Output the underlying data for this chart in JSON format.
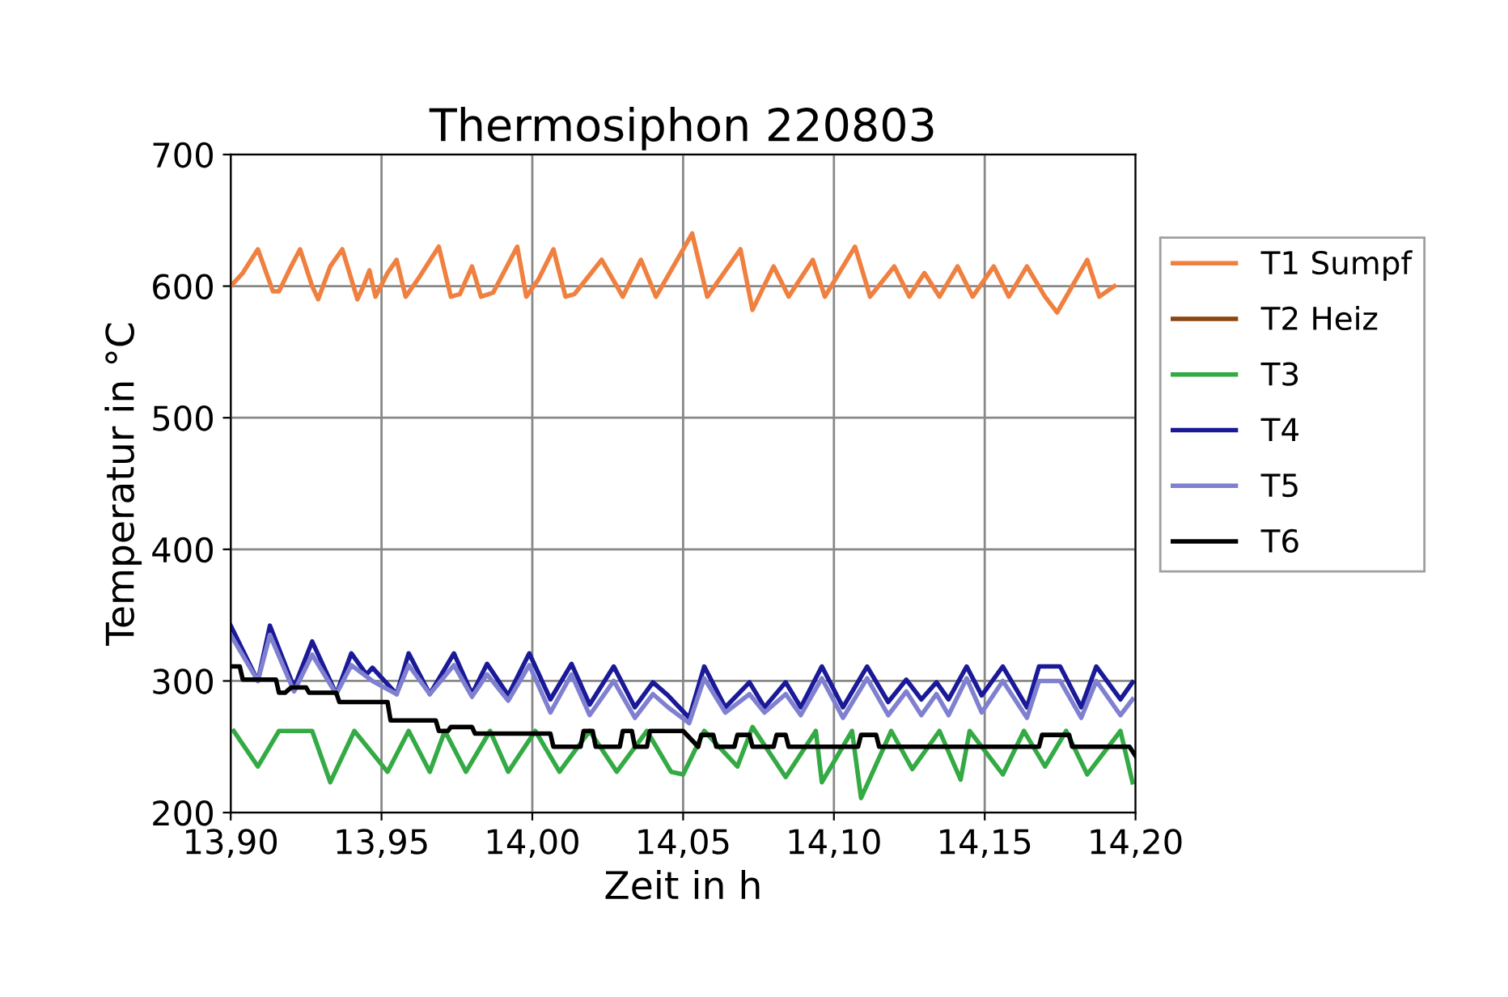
{
  "chart_data": {
    "type": "line",
    "title": "Thermosiphon 220803",
    "xlabel": "Zeit in h",
    "ylabel": "Temperatur in °C",
    "xlim": [
      13.9,
      14.2
    ],
    "ylim": [
      200,
      700
    ],
    "xticks": [
      {
        "value": 13.9,
        "label": "13,90"
      },
      {
        "value": 13.95,
        "label": "13,95"
      },
      {
        "value": 14.0,
        "label": "14,00"
      },
      {
        "value": 14.05,
        "label": "14,05"
      },
      {
        "value": 14.1,
        "label": "14,10"
      },
      {
        "value": 14.15,
        "label": "14,15"
      },
      {
        "value": 14.2,
        "label": "14,20"
      }
    ],
    "yticks": [
      200,
      300,
      400,
      500,
      600,
      700
    ],
    "grid": true,
    "legend": "right",
    "line_style": "solid",
    "marker": "none",
    "series": [
      {
        "name": "T1 Sumpf",
        "color": "#f08040",
        "x": [
          13.9,
          13.904,
          13.909,
          13.914,
          13.916,
          13.92,
          13.923,
          13.927,
          13.929,
          13.933,
          13.937,
          13.942,
          13.944,
          13.946,
          13.948,
          13.952,
          13.955,
          13.958,
          13.962,
          13.969,
          13.973,
          13.976,
          13.98,
          13.983,
          13.987,
          13.995,
          13.998,
          14.002,
          14.007,
          14.011,
          14.014,
          14.023,
          14.03,
          14.036,
          14.041,
          14.053,
          14.058,
          14.069,
          14.073,
          14.08,
          14.085,
          14.093,
          14.097,
          14.107,
          14.112,
          14.12,
          14.125,
          14.13,
          14.135,
          14.141,
          14.146,
          14.153,
          14.158,
          14.164,
          14.17,
          14.174,
          14.184,
          14.188,
          14.193
        ],
        "values": [
          600,
          610,
          628,
          596,
          596,
          615,
          628,
          600,
          590,
          615,
          628,
          590,
          600,
          612,
          592,
          610,
          620,
          592,
          605,
          630,
          592,
          594,
          615,
          592,
          595,
          630,
          592,
          605,
          628,
          592,
          594,
          620,
          592,
          620,
          592,
          640,
          592,
          628,
          582,
          615,
          592,
          620,
          592,
          630,
          592,
          615,
          592,
          610,
          592,
          615,
          592,
          615,
          592,
          615,
          592,
          580,
          620,
          592,
          600
        ]
      },
      {
        "name": "T2 Heiz",
        "color": "#8b4513"
      },
      {
        "name": "T3",
        "color": "#33aa44",
        "x": [
          13.901,
          13.909,
          13.916,
          13.927,
          13.933,
          13.941,
          13.952,
          13.959,
          13.966,
          13.971,
          13.978,
          13.986,
          13.992,
          14.001,
          14.009,
          14.019,
          14.028,
          14.038,
          14.046,
          14.05,
          14.057,
          14.068,
          14.073,
          14.084,
          14.094,
          14.096,
          14.106,
          14.109,
          14.119,
          14.126,
          14.135,
          14.142,
          14.145,
          14.156,
          14.163,
          14.17,
          14.177,
          14.184,
          14.195,
          14.199
        ],
        "values": [
          262,
          235,
          262,
          262,
          223,
          262,
          231,
          262,
          231,
          262,
          231,
          262,
          231,
          262,
          231,
          262,
          231,
          262,
          231,
          229,
          262,
          235,
          265,
          227,
          262,
          223,
          262,
          211,
          262,
          233,
          262,
          225,
          262,
          229,
          262,
          235,
          262,
          229,
          262,
          223
        ]
      },
      {
        "name": "T4",
        "color": "#1a1a99",
        "x": [
          13.9,
          13.909,
          13.913,
          13.921,
          13.927,
          13.935,
          13.94,
          13.945,
          13.947,
          13.955,
          13.959,
          13.966,
          13.974,
          13.98,
          13.985,
          13.992,
          13.999,
          14.006,
          14.013,
          14.019,
          14.027,
          14.034,
          14.04,
          14.045,
          14.052,
          14.057,
          14.064,
          14.072,
          14.077,
          14.084,
          14.089,
          14.096,
          14.103,
          14.111,
          14.118,
          14.124,
          14.129,
          14.134,
          14.138,
          14.144,
          14.149,
          14.156,
          14.164,
          14.168,
          14.175,
          14.182,
          14.187,
          14.195,
          14.199
        ],
        "values": [
          342,
          300,
          342,
          295,
          330,
          290,
          321,
          305,
          310,
          290,
          321,
          290,
          321,
          290,
          313,
          289,
          321,
          286,
          313,
          282,
          311,
          280,
          299,
          289,
          272,
          311,
          280,
          299,
          280,
          299,
          280,
          311,
          280,
          311,
          284,
          301,
          286,
          299,
          286,
          311,
          289,
          311,
          280,
          311,
          311,
          280,
          311,
          286,
          299
        ]
      },
      {
        "name": "T5",
        "color": "#8080d0",
        "x": [
          13.9,
          13.909,
          13.913,
          13.921,
          13.927,
          13.935,
          13.94,
          13.947,
          13.955,
          13.959,
          13.966,
          13.974,
          13.98,
          13.985,
          13.992,
          13.999,
          14.006,
          14.013,
          14.019,
          14.027,
          14.034,
          14.04,
          14.045,
          14.052,
          14.057,
          14.064,
          14.072,
          14.077,
          14.084,
          14.089,
          14.096,
          14.103,
          14.111,
          14.118,
          14.124,
          14.129,
          14.134,
          14.138,
          14.144,
          14.149,
          14.156,
          14.164,
          14.168,
          14.175,
          14.182,
          14.187,
          14.195,
          14.199
        ],
        "values": [
          335,
          300,
          335,
          292,
          320,
          290,
          312,
          300,
          290,
          312,
          290,
          312,
          288,
          305,
          285,
          312,
          276,
          305,
          274,
          300,
          272,
          290,
          280,
          268,
          302,
          276,
          290,
          276,
          290,
          274,
          302,
          272,
          302,
          274,
          292,
          274,
          290,
          274,
          302,
          276,
          300,
          272,
          300,
          300,
          272,
          300,
          274,
          286
        ]
      },
      {
        "name": "T6",
        "color": "#000000",
        "x": [
          13.9,
          13.903,
          13.904,
          13.915,
          13.916,
          13.918,
          13.92,
          13.925,
          13.926,
          13.935,
          13.936,
          13.952,
          13.953,
          13.968,
          13.969,
          13.972,
          13.973,
          13.98,
          13.981,
          14.006,
          14.007,
          14.016,
          14.017,
          14.02,
          14.021,
          14.029,
          14.03,
          14.033,
          14.034,
          14.038,
          14.039,
          14.05,
          14.055,
          14.056,
          14.06,
          14.061,
          14.067,
          14.068,
          14.072,
          14.073,
          14.08,
          14.081,
          14.084,
          14.085,
          14.108,
          14.109,
          14.114,
          14.115,
          14.119,
          14.12,
          14.168,
          14.169,
          14.178,
          14.179,
          14.198,
          14.2
        ],
        "values": [
          311,
          311,
          301,
          301,
          291,
          291,
          295,
          295,
          291,
          291,
          284,
          284,
          270,
          270,
          262,
          262,
          265,
          265,
          260,
          260,
          250,
          250,
          262,
          262,
          250,
          250,
          262,
          262,
          250,
          250,
          262,
          262,
          250,
          259,
          259,
          250,
          250,
          259,
          259,
          250,
          250,
          259,
          259,
          250,
          250,
          259,
          259,
          250,
          250,
          250,
          250,
          259,
          259,
          250,
          250,
          243
        ]
      }
    ]
  }
}
